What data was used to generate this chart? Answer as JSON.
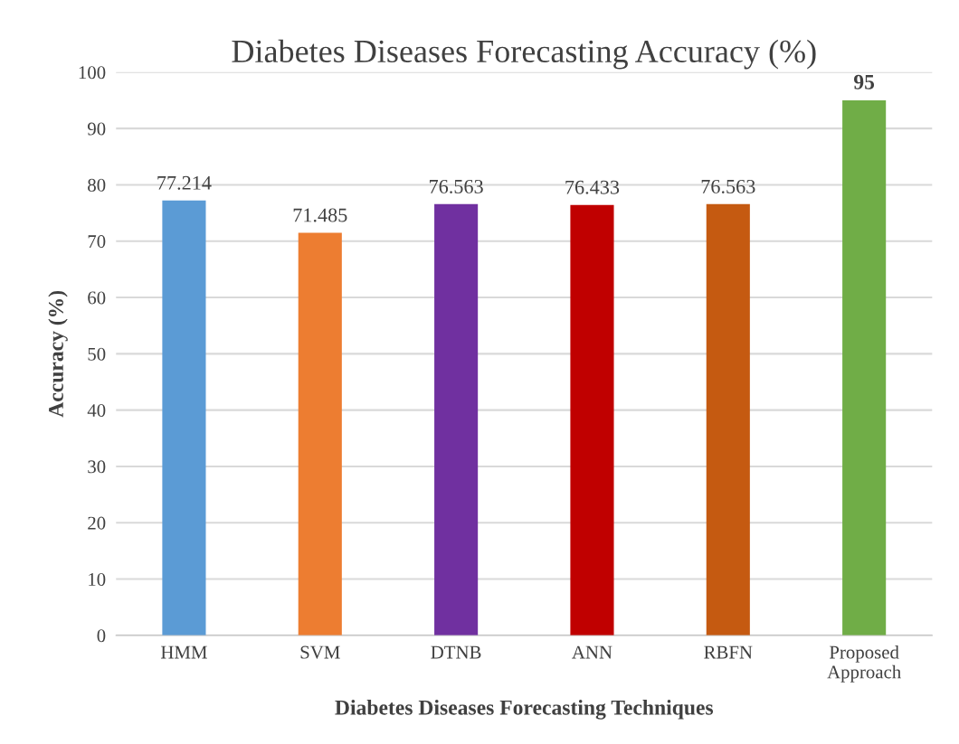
{
  "chart_data": {
    "type": "bar",
    "title": "Diabetes Diseases Forecasting Accuracy (%)",
    "xlabel": "Diabetes Diseases Forecasting Techniques",
    "ylabel": "Accuracy (%)",
    "categories": [
      "HMM",
      "SVM",
      "DTNB",
      "ANN",
      "RBFN",
      "Proposed\nApproach"
    ],
    "values": [
      77.214,
      71.485,
      76.563,
      76.433,
      76.563,
      95
    ],
    "colors": [
      "#5b9bd5",
      "#ed7d31",
      "#7030a0",
      "#c00000",
      "#c55a11",
      "#70ad47"
    ],
    "data_labels": true,
    "ylim": [
      0,
      100
    ],
    "yticks": [
      0,
      10,
      20,
      30,
      40,
      50,
      60,
      70,
      80,
      90,
      100
    ],
    "grid": "y",
    "legend": false
  }
}
